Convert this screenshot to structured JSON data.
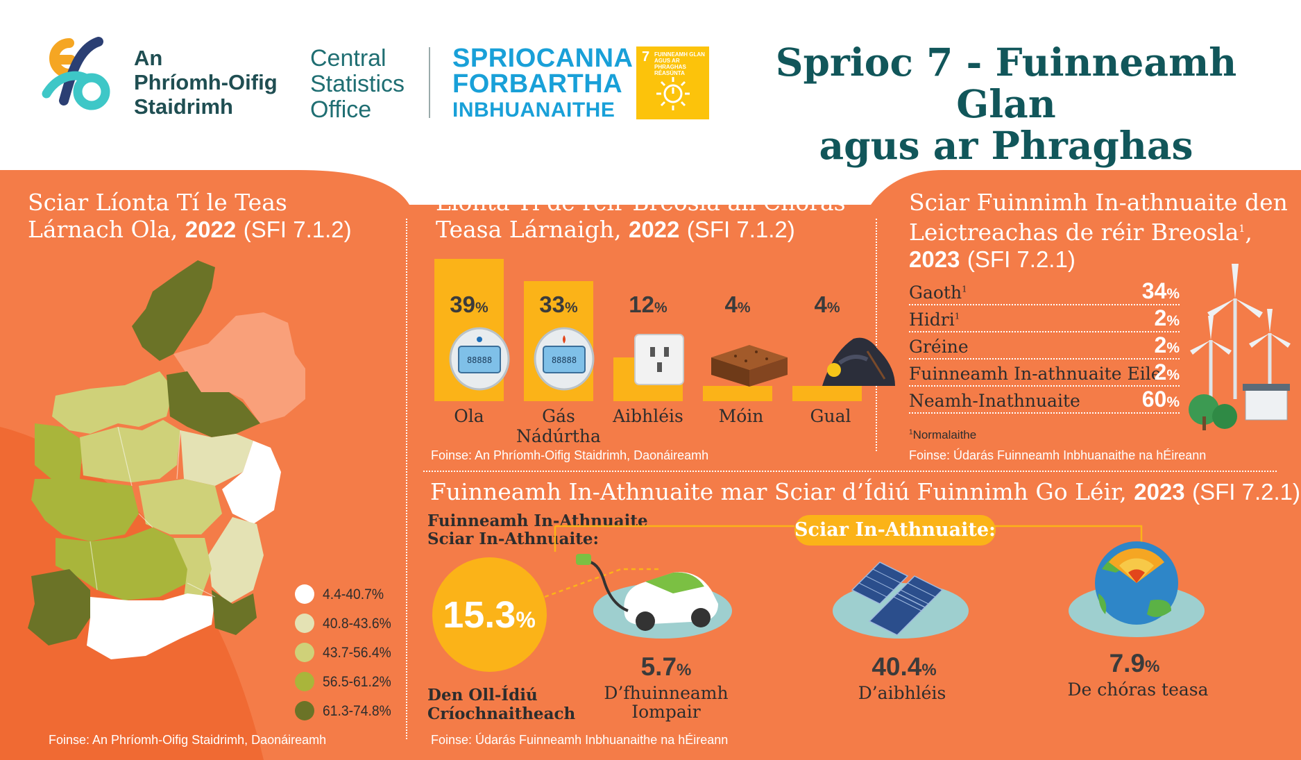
{
  "header": {
    "logo_lines": [
      "An",
      "Phríomh-Oifig",
      "Staidrimh"
    ],
    "cso_english": [
      "Central",
      "Statistics",
      "Office"
    ],
    "sdg_lines": [
      "SPRIOCANNA",
      "FORBARTHA",
      "INBHUANAITHE"
    ],
    "sdg7_number": "7",
    "sdg7_text": [
      "FUINNEAMH GLAN",
      "AGUS AR PHRAGHAS",
      "RÉASÚNTA"
    ],
    "title_line1": "Sprioc 7 - Fuinneamh Glan",
    "title_line2": "agus ar Phraghas Réasúnta"
  },
  "colors": {
    "orange_bg": "#f47c48",
    "orange_dark": "#f06a33",
    "light_orange": "#f9a07a",
    "accent_yellow": "#fbb318",
    "title_teal": "#11565a"
  },
  "map_panel": {
    "title_regular": "Sciar Líonta Tí le Teas Lárnach Ola,",
    "title_bold": "2022",
    "title_tail": "(SFI 7.1.2)",
    "legend": [
      {
        "label": "4.4-40.7%",
        "color": "#ffffff"
      },
      {
        "label": "40.8-43.6%",
        "color": "#e4e2b4"
      },
      {
        "label": "43.7-56.4%",
        "color": "#cfd179"
      },
      {
        "label": "56.5-61.2%",
        "color": "#a9b53b"
      },
      {
        "label": "61.3-74.8%",
        "color": "#6b7327"
      }
    ],
    "source": "Foinse: An Phríomh-Oifig Staidrimh, Daonáireamh"
  },
  "fuel_panel": {
    "title_regular": "Líonta Tí de réir Breosla an Chóras Teasa Lárnaigh,",
    "title_bold": "2022",
    "title_tail": "(SFI 7.1.2)",
    "bars": [
      {
        "label": "Ola",
        "value": "39",
        "icon": "oil-meter-icon"
      },
      {
        "label": "Gás Nádúrtha",
        "value": "33",
        "icon": "gas-meter-icon"
      },
      {
        "label": "Aibhléis",
        "value": "12",
        "icon": "electric-socket-icon"
      },
      {
        "label": "Móin",
        "value": "4",
        "icon": "peat-block-icon"
      },
      {
        "label": "Gual",
        "value": "4",
        "icon": "coal-pile-icon"
      }
    ],
    "pct_sign": "%",
    "source": "Foinse: An Phríomh-Oifig Staidrimh, Daonáireamh"
  },
  "renew_panel": {
    "title_line1": "Sciar Fuinnimh In-athnuaite den",
    "title_line2": "Leictreachas de réir Breosla",
    "title_sup": "1",
    "title_comma": ",",
    "title_bold": "2023",
    "title_tail": "(SFI 7.2.1)",
    "rows": [
      {
        "label": "Gaoth",
        "sup": "1",
        "value": "34"
      },
      {
        "label": "Hidri",
        "sup": "1",
        "value": "2"
      },
      {
        "label": "Gréine",
        "sup": "",
        "value": "2"
      },
      {
        "label": "Fuinneamh In-athnuaite Eile",
        "sup": "",
        "value": "2"
      },
      {
        "label": "Neamh-Inathnuaite",
        "sup": "",
        "value": "60"
      }
    ],
    "pct_sign": "%",
    "footnote_sup": "1",
    "footnote": "Normalaithe",
    "source": "Foinse: Údarás Fuinneamh Inbhuanaithe na hÉireann"
  },
  "share_panel": {
    "title_regular": "Fuinneamh In-Athnuaite mar Sciar d’Ídiú Fuinnimh Go Léir,",
    "title_bold": "2023",
    "title_tail": "(SFI 7.2.1)",
    "left_label_line1": "Fuinneamh In-Athnuaite",
    "left_label_line2": "Sciar In-Athnuaite:",
    "big_value": "15.3",
    "pct_sign": "%",
    "bottom_label_line1": "Den Oll-Ídiú",
    "bottom_label_line2": "Críochnaitheach",
    "pill_label": "Sciar In-Athnuaite:",
    "items": [
      {
        "value": "5.7",
        "label_line1": "D’fhuinneamh",
        "label_line2": "Iompair",
        "icon": "electric-car-icon"
      },
      {
        "value": "40.4",
        "label_line1": "D’aibhléis",
        "label_line2": "",
        "icon": "solar-panels-icon"
      },
      {
        "value": "7.9",
        "label_line1": "De chóras teasa",
        "label_line2": "",
        "icon": "globe-geothermal-icon"
      }
    ],
    "source": "Foinse: Údarás Fuinneamh Inbhuanaithe na hÉireann"
  }
}
